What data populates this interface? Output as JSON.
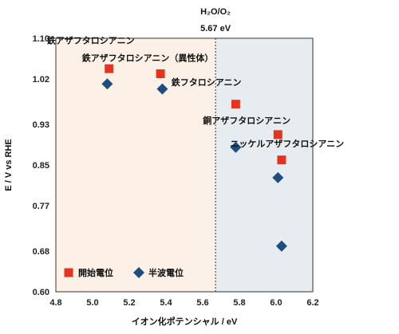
{
  "chart_data": {
    "type": "scatter",
    "xlabel": "イオン化ポテンシャル / eV",
    "ylabel": "E / V vs RHE",
    "xlim": [
      4.8,
      6.2
    ],
    "ylim": [
      0.6,
      1.1
    ],
    "x_ticks": [
      "4.8",
      "5.0",
      "5.2",
      "5.4",
      "5.6",
      "5.8",
      "6.0",
      "6.2"
    ],
    "y_ticks": [
      "0.60",
      "0.68",
      "0.77",
      "0.85",
      "0.93",
      "1.02",
      "1.10"
    ],
    "reference_line": {
      "x": 5.67,
      "label": "H₂O/O₂",
      "value_label": "5.67 eV"
    },
    "legend_position": "bottom-left",
    "colors": {
      "left_region": "#fdf1e7",
      "right_region": "#e7ecf1",
      "onset": "#e8321e",
      "half_wave": "#1e4d80"
    },
    "series": [
      {
        "name": "開始電位",
        "marker": "square",
        "points": [
          {
            "x": 5.09,
            "y": 1.04
          },
          {
            "x": 5.37,
            "y": 1.03
          },
          {
            "x": 5.78,
            "y": 0.97
          },
          {
            "x": 6.01,
            "y": 0.91
          },
          {
            "x": 6.03,
            "y": 0.86
          }
        ]
      },
      {
        "name": "半波電位",
        "marker": "diamond",
        "points": [
          {
            "x": 5.08,
            "y": 1.01
          },
          {
            "x": 5.38,
            "y": 1.0
          },
          {
            "x": 5.78,
            "y": 0.885
          },
          {
            "x": 6.01,
            "y": 0.825
          },
          {
            "x": 6.03,
            "y": 0.69
          }
        ]
      }
    ],
    "annotations": [
      {
        "text": "鉄アザフタロシアニン",
        "x": 4.99,
        "y": 1.09
      },
      {
        "text": "鉄アザフタロシアニン（異性体）",
        "x": 5.3,
        "y": 1.055
      },
      {
        "text": "鉄フタロシアニン",
        "x": 5.62,
        "y": 1.007
      },
      {
        "text": "銅アザフタロシアニン",
        "x": 5.84,
        "y": 0.932
      },
      {
        "text": "ニッケルアザフタロシアニン",
        "x": 6.06,
        "y": 0.886
      }
    ]
  }
}
